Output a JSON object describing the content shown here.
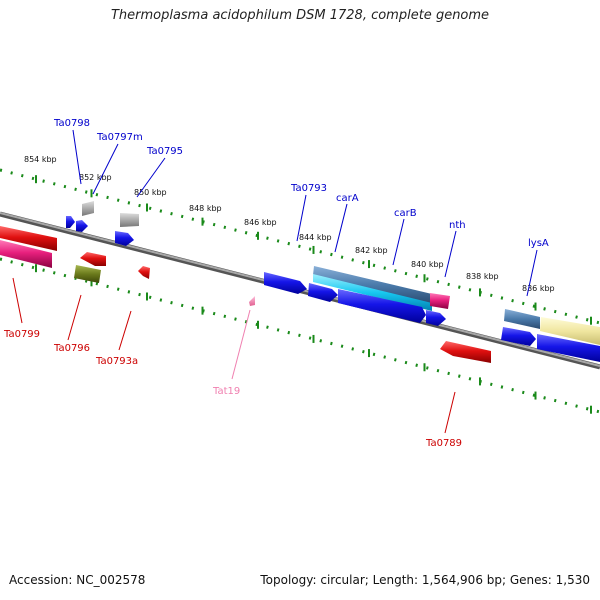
{
  "title": "Thermoplasma acidophilum DSM 1728, complete genome",
  "footer": {
    "accession": "Accession: NC_002578",
    "topology": "Topology: circular; Length: 1,564,906 bp; Genes: 1,530"
  },
  "colors": {
    "cds": "#1010e0",
    "cds_label": "#0000cc",
    "rna": "#dd1111",
    "rna_label": "#cc0000",
    "trna": "#f080b0",
    "backbone": "#808080",
    "tick": "#1a8a1a"
  },
  "scale_labels": [
    "854 kbp",
    "852 kbp",
    "850 kbp",
    "848 kbp",
    "846 kbp",
    "844 kbp",
    "842 kbp",
    "840 kbp",
    "838 kbp",
    "836 kbp"
  ],
  "labels_top": [
    "Ta0798",
    "Ta0797m",
    "Ta0795",
    "Ta0793",
    "carA",
    "carB",
    "nth",
    "lysA"
  ],
  "labels_bottom": [
    "Ta0799",
    "Ta0796",
    "Ta0793a",
    "Tat19",
    "Ta0789"
  ]
}
